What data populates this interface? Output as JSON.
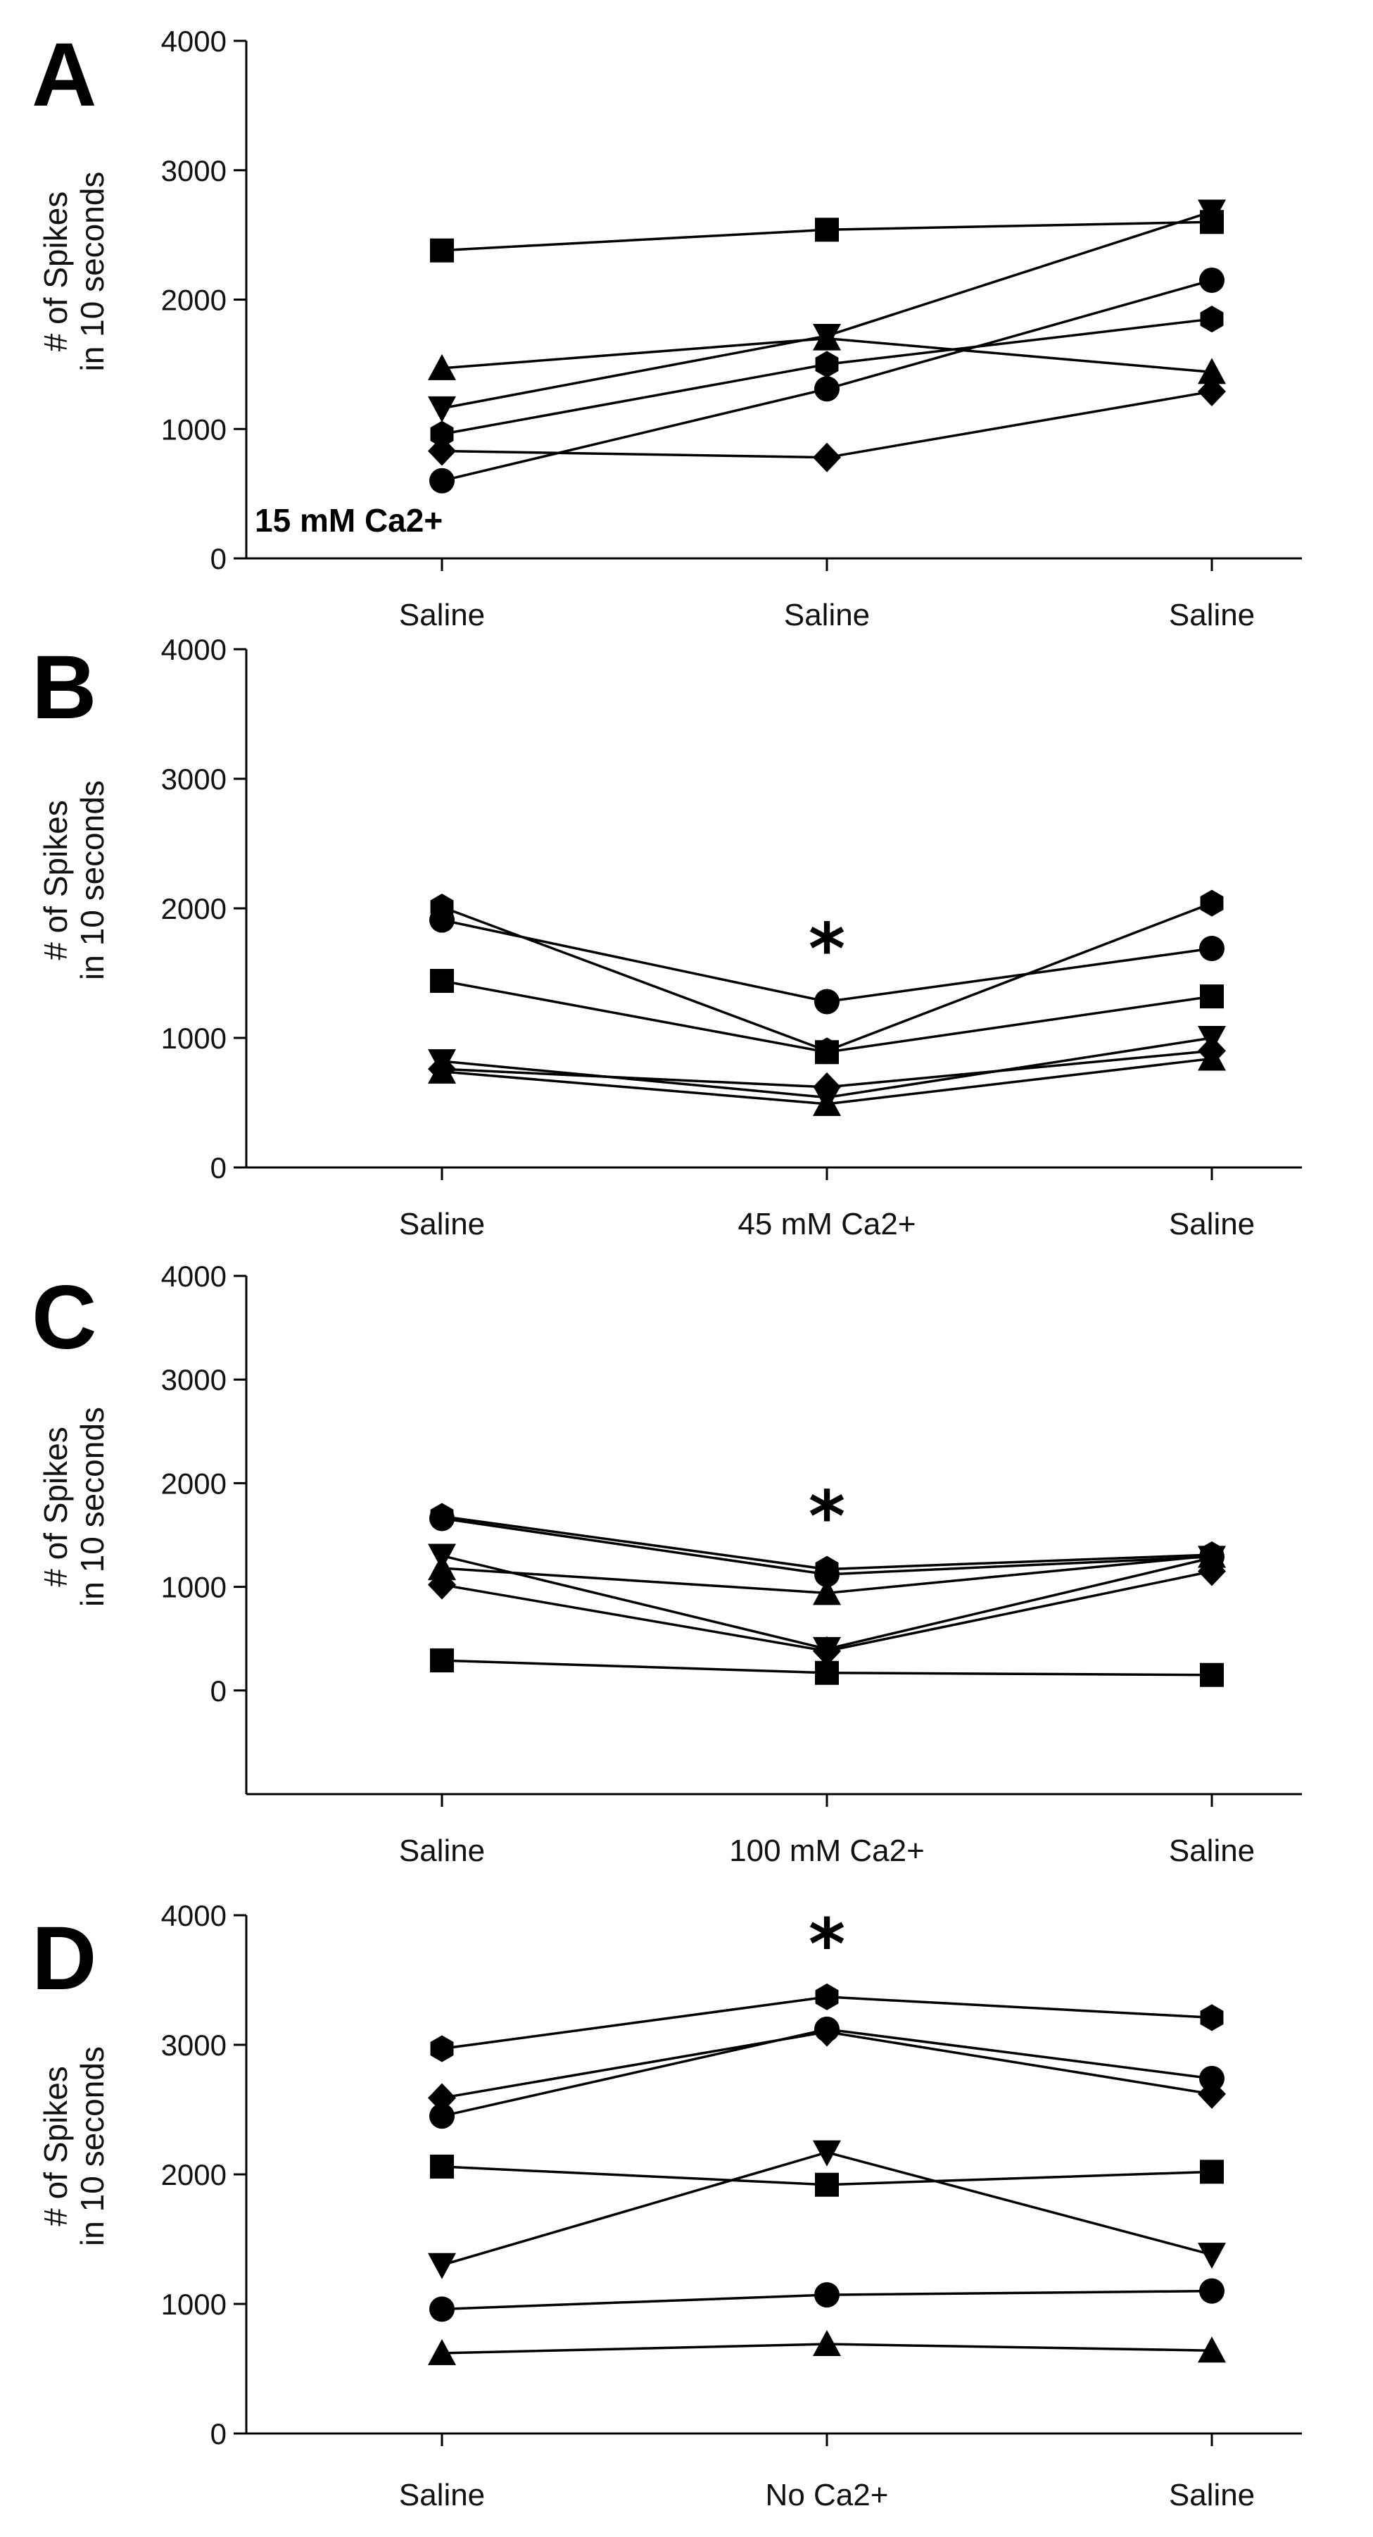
{
  "chart_data": [
    {
      "type": "line",
      "panel": "A",
      "ylabel": [
        "# of Spikes",
        "in 10 seconds"
      ],
      "categories": [
        "Saline",
        "Saline",
        "Saline"
      ],
      "ylim": [
        0,
        4000
      ],
      "yticks": [
        0,
        1000,
        2000,
        3000,
        4000
      ],
      "annotation": "15 mM Ca2+",
      "significance": [],
      "series": [
        {
          "marker": "square",
          "values": [
            2380,
            2540,
            2600
          ]
        },
        {
          "marker": "triangle-up",
          "values": [
            1470,
            1700,
            1440
          ]
        },
        {
          "marker": "triangle-down",
          "values": [
            1160,
            1720,
            2680
          ]
        },
        {
          "marker": "hexagon",
          "values": [
            960,
            1500,
            1850
          ]
        },
        {
          "marker": "diamond",
          "values": [
            830,
            780,
            1290
          ]
        },
        {
          "marker": "circle",
          "values": [
            600,
            1310,
            2150
          ]
        }
      ]
    },
    {
      "type": "line",
      "panel": "B",
      "ylabel": [
        "# of Spikes",
        "in 10 seconds"
      ],
      "categories": [
        "Saline",
        "45 mM Ca2+",
        "Saline"
      ],
      "ylim": [
        0,
        4000
      ],
      "yticks": [
        0,
        1000,
        2000,
        3000,
        4000
      ],
      "significance": [
        {
          "category": 1,
          "label": "*"
        }
      ],
      "series": [
        {
          "marker": "hexagon",
          "values": [
            2010,
            900,
            2040
          ]
        },
        {
          "marker": "circle",
          "values": [
            1910,
            1280,
            1690
          ]
        },
        {
          "marker": "square",
          "values": [
            1440,
            890,
            1320
          ]
        },
        {
          "marker": "triangle-down",
          "values": [
            820,
            540,
            1000
          ]
        },
        {
          "marker": "diamond",
          "values": [
            760,
            620,
            900
          ]
        },
        {
          "marker": "triangle-up",
          "values": [
            740,
            490,
            840
          ]
        }
      ]
    },
    {
      "type": "line",
      "panel": "C",
      "ylabel": [
        "# of Spikes",
        "in 10 seconds"
      ],
      "categories": [
        "Saline",
        "100 mM Ca2+",
        "Saline"
      ],
      "ylim": [
        -1000,
        4000
      ],
      "yticks": [
        0,
        1000,
        2000,
        3000,
        4000
      ],
      "significance": [
        {
          "category": 1,
          "label": "*"
        }
      ],
      "series": [
        {
          "marker": "hexagon",
          "values": [
            1680,
            1170,
            1310
          ]
        },
        {
          "marker": "circle",
          "values": [
            1660,
            1120,
            1290
          ]
        },
        {
          "marker": "triangle-down",
          "values": [
            1300,
            400,
            1280
          ]
        },
        {
          "marker": "triangle-up",
          "values": [
            1180,
            940,
            1300
          ]
        },
        {
          "marker": "diamond",
          "values": [
            1020,
            380,
            1150
          ]
        },
        {
          "marker": "square",
          "values": [
            290,
            170,
            150
          ]
        }
      ]
    },
    {
      "type": "line",
      "panel": "D",
      "ylabel": [
        "# of Spikes",
        "in 10 seconds"
      ],
      "categories": [
        "Saline",
        "No Ca2+",
        "Saline"
      ],
      "ylim": [
        0,
        4000
      ],
      "yticks": [
        0,
        1000,
        2000,
        3000,
        4000
      ],
      "significance": [
        {
          "category": 1,
          "label": "*"
        }
      ],
      "series": [
        {
          "marker": "hexagon",
          "values": [
            2970,
            3370,
            3210
          ]
        },
        {
          "marker": "diamond",
          "values": [
            2590,
            3100,
            2620
          ]
        },
        {
          "marker": "circle",
          "values": [
            2450,
            3120,
            2740
          ]
        },
        {
          "marker": "square",
          "values": [
            2060,
            1920,
            2020
          ]
        },
        {
          "marker": "triangle-down",
          "values": [
            1300,
            2170,
            1380
          ]
        },
        {
          "marker": "circle",
          "values": [
            960,
            1070,
            1100
          ]
        },
        {
          "marker": "triangle-up",
          "values": [
            620,
            690,
            640
          ]
        }
      ]
    }
  ]
}
